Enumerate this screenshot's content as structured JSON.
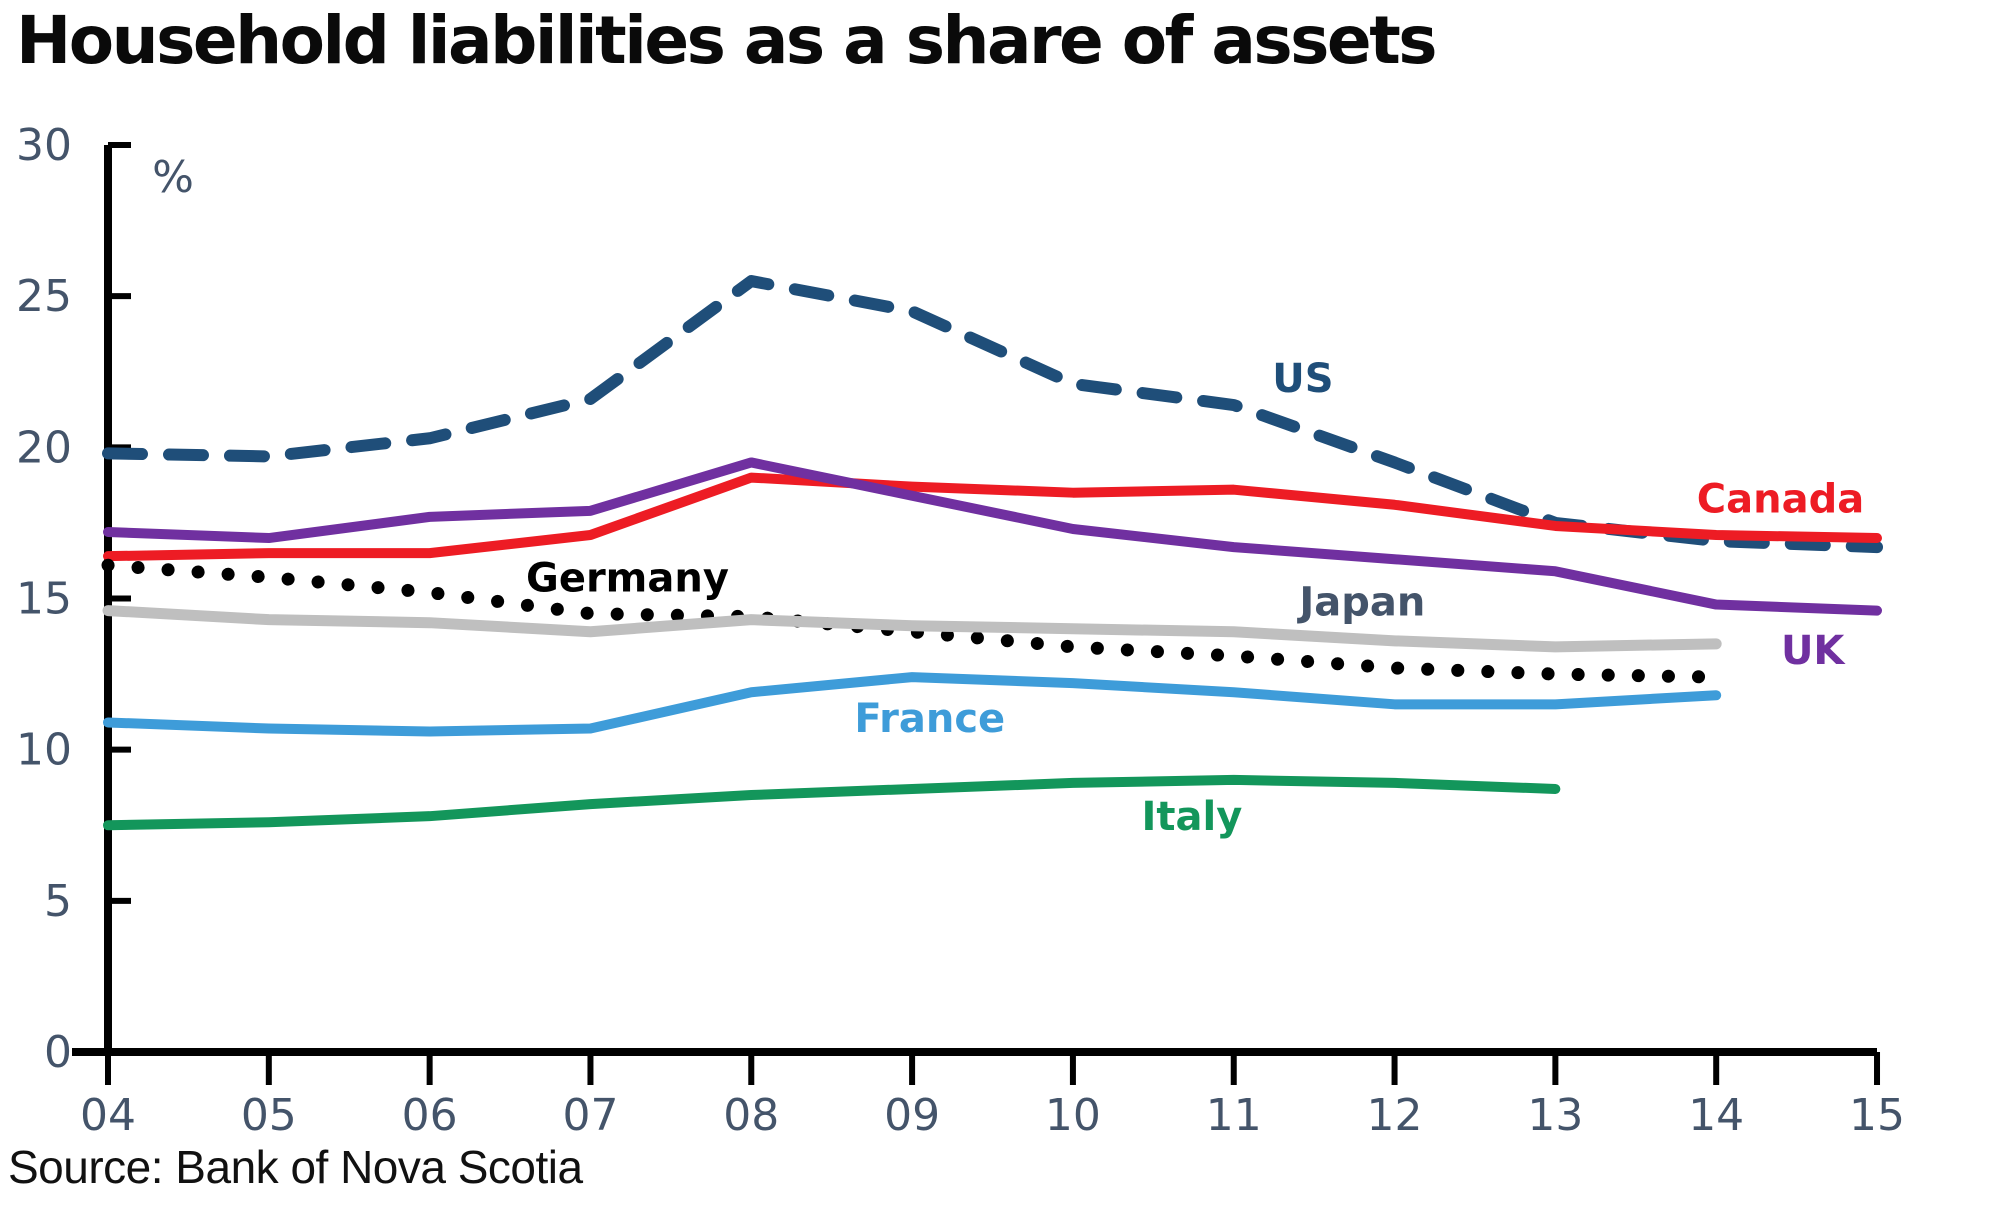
{
  "header": {
    "title": "Household liabilities as a share of assets"
  },
  "footer": {
    "source": "Source: Bank of Nova Scotia"
  },
  "chart_data": {
    "type": "line",
    "title": "Household liabilities as a share of assets",
    "unit_label": "%",
    "x": [
      2004,
      2005,
      2006,
      2007,
      2008,
      2009,
      2010,
      2011,
      2012,
      2013,
      2014,
      2015
    ],
    "x_tick_labels": [
      "04",
      "05",
      "06",
      "07",
      "08",
      "09",
      "10",
      "11",
      "12",
      "13",
      "14",
      "15"
    ],
    "ylim": [
      0,
      30
    ],
    "y_ticks": [
      0,
      5,
      10,
      15,
      20,
      25,
      30
    ],
    "grid": false,
    "legend_position": "inline-labels",
    "axis_color": "#000000",
    "tick_label_color": "#44546A",
    "series": [
      {
        "name": "US",
        "color": "#1F4E79",
        "line_style": "dashed",
        "line_width": 12,
        "values": [
          19.8,
          19.7,
          20.3,
          21.6,
          25.5,
          24.5,
          22.1,
          21.4,
          19.5,
          17.5,
          16.9,
          16.7
        ],
        "label": {
          "text": "US",
          "year": 2011.43,
          "value": 22.3
        }
      },
      {
        "name": "Canada",
        "color": "#ED1C24",
        "line_style": "solid",
        "line_width": 10,
        "values": [
          16.4,
          16.5,
          16.5,
          17.1,
          19.0,
          18.7,
          18.5,
          18.6,
          18.1,
          17.4,
          17.1,
          17.0
        ],
        "label": {
          "text": "Canada",
          "year": 2014.4,
          "value": 18.3
        }
      },
      {
        "name": "UK",
        "color": "#7030A0",
        "line_style": "solid",
        "line_width": 10,
        "values": [
          17.2,
          17.0,
          17.7,
          17.9,
          19.5,
          18.4,
          17.3,
          16.7,
          16.3,
          15.9,
          14.8,
          14.6
        ],
        "label": {
          "text": "UK",
          "year": 2014.6,
          "value": 13.3
        }
      },
      {
        "name": "Germany",
        "color": "#000000",
        "line_style": "dotted",
        "line_width": 13,
        "values": [
          16.1,
          15.7,
          15.2,
          14.5,
          14.4,
          13.9,
          13.4,
          13.1,
          12.7,
          12.5,
          12.4,
          null
        ],
        "label": {
          "text": "Germany",
          "year": 2007.23,
          "value": 15.7
        }
      },
      {
        "name": "Japan",
        "color": "#BFBFBF",
        "line_style": "solid",
        "line_width": 11,
        "values": [
          14.6,
          14.3,
          14.2,
          13.9,
          14.3,
          14.1,
          14.0,
          13.9,
          13.6,
          13.4,
          13.5,
          null
        ],
        "label": {
          "text": "Japan",
          "year": 2011.8,
          "value": 14.9,
          "color": "#44546A"
        }
      },
      {
        "name": "France",
        "color": "#3E9CD9",
        "line_style": "solid",
        "line_width": 10,
        "values": [
          10.9,
          10.7,
          10.6,
          10.7,
          11.9,
          12.4,
          12.2,
          11.9,
          11.5,
          11.5,
          11.8,
          null
        ],
        "label": {
          "text": "France",
          "year": 2009.11,
          "value": 11.05
        }
      },
      {
        "name": "Italy",
        "color": "#13965B",
        "line_style": "solid",
        "line_width": 10,
        "values": [
          7.5,
          7.6,
          7.8,
          8.2,
          8.5,
          8.7,
          8.9,
          9.0,
          8.9,
          8.7,
          null,
          null
        ],
        "label": {
          "text": "Italy",
          "year": 2010.74,
          "value": 7.8
        }
      }
    ]
  }
}
